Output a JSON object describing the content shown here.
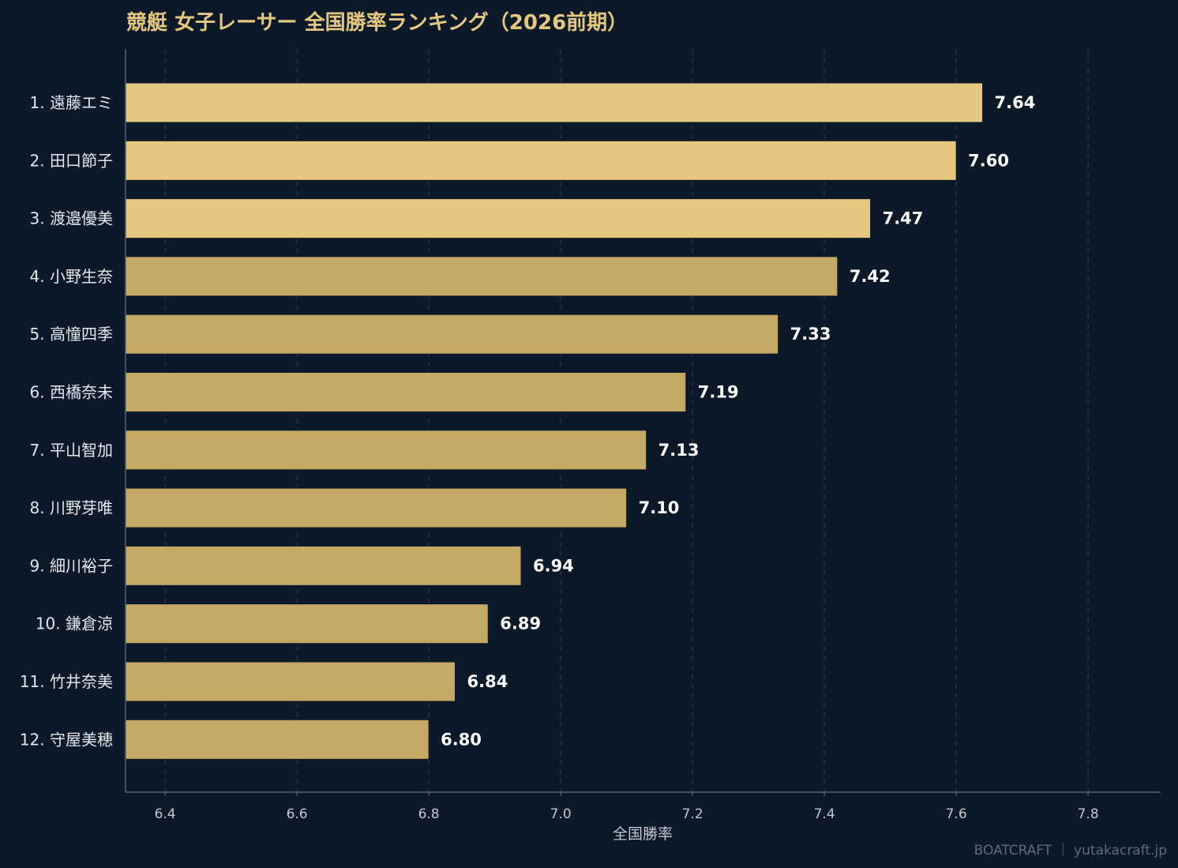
{
  "chart_data": {
    "type": "bar",
    "orientation": "horizontal",
    "title": "競艇 女子レーサー 全国勝率ランキング（2026前期）",
    "xlabel": "全国勝率",
    "ylabel": "",
    "xlim": [
      6.34,
      7.91
    ],
    "xticks": [
      "6.4",
      "6.6",
      "6.8",
      "7.0",
      "7.2",
      "7.4",
      "7.6",
      "7.8"
    ],
    "grid": "vertical dashed",
    "categories": [
      "1. 遠藤エミ",
      "2. 田口節子",
      "3. 渡邉優美",
      "4. 小野生奈",
      "5. 高憧四季",
      "6. 西橋奈未",
      "7. 平山智加",
      "8. 川野芽唯",
      "9. 細川裕子",
      "10. 鎌倉涼",
      "11. 竹井奈美",
      "12. 守屋美穂"
    ],
    "values": [
      7.64,
      7.6,
      7.47,
      7.42,
      7.33,
      7.19,
      7.13,
      7.1,
      6.94,
      6.89,
      6.84,
      6.8
    ],
    "value_labels": [
      "7.64",
      "7.60",
      "7.47",
      "7.42",
      "7.33",
      "7.19",
      "7.13",
      "7.10",
      "6.94",
      "6.89",
      "6.84",
      "6.80"
    ],
    "colors": {
      "top3": "#e6c77f",
      "rest": "#c6a865",
      "background": "#0b1929",
      "title": "#e6c77f",
      "grid": "#2a3a45"
    },
    "highlight_top": 3
  },
  "credit": "BOATCRAFT ｜ yutakacraft.jp"
}
